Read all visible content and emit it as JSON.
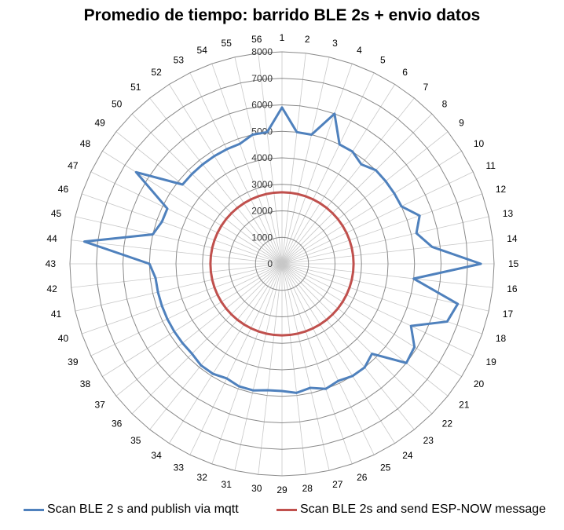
{
  "chart_data": {
    "type": "radar",
    "title": "Promedio de tiempo: barrido BLE 2s + envio datos",
    "categories": [
      "1",
      "2",
      "3",
      "4",
      "5",
      "6",
      "7",
      "8",
      "9",
      "10",
      "11",
      "12",
      "13",
      "14",
      "15",
      "16",
      "17",
      "18",
      "19",
      "20",
      "21",
      "22",
      "23",
      "24",
      "25",
      "26",
      "27",
      "28",
      "29",
      "30",
      "31",
      "32",
      "33",
      "34",
      "35",
      "36",
      "37",
      "38",
      "39",
      "40",
      "41",
      "42",
      "43",
      "44",
      "45",
      "46",
      "47",
      "48",
      "49",
      "50",
      "51",
      "52",
      "53",
      "54",
      "55",
      "56"
    ],
    "radial_ticks": [
      0,
      1000,
      2000,
      3000,
      4000,
      5000,
      6000,
      7000,
      8000
    ],
    "rlim": [
      0,
      8000
    ],
    "grid": true,
    "legend_position": "bottom",
    "series": [
      {
        "name": "Scan BLE 2 s and publish via mqtt",
        "color": "#4F81BD",
        "values": [
          5900,
          5000,
          5000,
          6000,
          5000,
          5000,
          4800,
          5000,
          5000,
          5000,
          5000,
          5500,
          5200,
          5700,
          7500,
          5000,
          6800,
          6600,
          5400,
          5900,
          6000,
          4800,
          5000,
          5000,
          4900,
          5000,
          4800,
          4900,
          4800,
          4800,
          4900,
          4900,
          4800,
          4900,
          4900,
          4800,
          4800,
          4800,
          4800,
          4800,
          4800,
          4800,
          5000,
          7500,
          5000,
          4800,
          4800,
          6500,
          4800,
          4800,
          4800,
          4800,
          4800,
          4800,
          5000,
          5000
        ]
      },
      {
        "name": "Scan BLE 2s and send ESP-NOW message",
        "color": "#C0504D",
        "values": [
          2700,
          2700,
          2700,
          2700,
          2700,
          2700,
          2700,
          2700,
          2700,
          2700,
          2700,
          2700,
          2700,
          2700,
          2700,
          2700,
          2700,
          2700,
          2700,
          2700,
          2700,
          2700,
          2700,
          2700,
          2700,
          2700,
          2700,
          2700,
          2700,
          2700,
          2700,
          2700,
          2700,
          2700,
          2700,
          2700,
          2700,
          2700,
          2700,
          2700,
          2700,
          2700,
          2700,
          2700,
          2700,
          2700,
          2700,
          2700,
          2700,
          2700,
          2700,
          2700,
          2700,
          2700,
          2700,
          2700
        ]
      }
    ]
  }
}
